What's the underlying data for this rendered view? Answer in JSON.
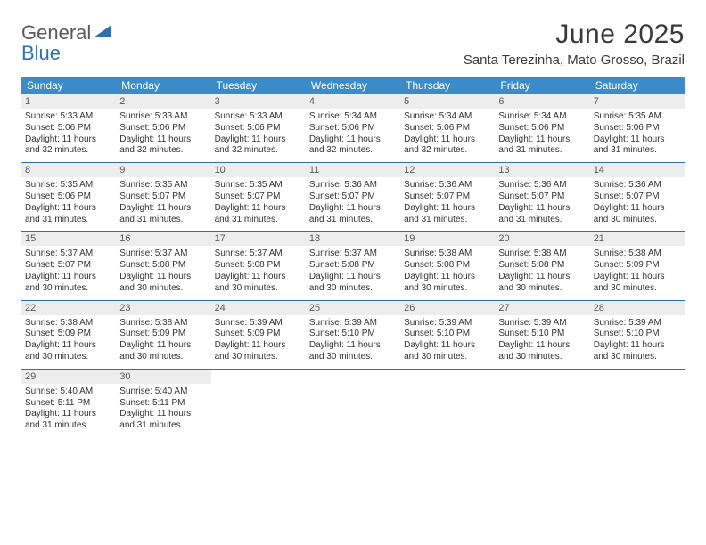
{
  "branding": {
    "logo_word1": "General",
    "logo_word2": "Blue",
    "logo_color_gray": "#6a6a6a",
    "logo_color_blue": "#2f6fb1"
  },
  "header": {
    "title": "June 2025",
    "location": "Santa Terezinha, Mato Grosso, Brazil"
  },
  "style": {
    "header_row_bg": "#3b8bc9",
    "header_row_fg": "#ffffff",
    "daynum_bg": "#ededed",
    "daynum_fg": "#5a5a5a",
    "week_divider": "#2f6fb1",
    "body_text": "#333333",
    "dow_fontsize": 12,
    "daynum_fontsize": 11,
    "info_fontsize": 10,
    "title_fontsize": 30,
    "location_fontsize": 15
  },
  "days_of_week": [
    "Sunday",
    "Monday",
    "Tuesday",
    "Wednesday",
    "Thursday",
    "Friday",
    "Saturday"
  ],
  "days": [
    {
      "n": "1",
      "sunrise": "5:33 AM",
      "sunset": "5:06 PM",
      "daylight": "11 hours and 32 minutes."
    },
    {
      "n": "2",
      "sunrise": "5:33 AM",
      "sunset": "5:06 PM",
      "daylight": "11 hours and 32 minutes."
    },
    {
      "n": "3",
      "sunrise": "5:33 AM",
      "sunset": "5:06 PM",
      "daylight": "11 hours and 32 minutes."
    },
    {
      "n": "4",
      "sunrise": "5:34 AM",
      "sunset": "5:06 PM",
      "daylight": "11 hours and 32 minutes."
    },
    {
      "n": "5",
      "sunrise": "5:34 AM",
      "sunset": "5:06 PM",
      "daylight": "11 hours and 32 minutes."
    },
    {
      "n": "6",
      "sunrise": "5:34 AM",
      "sunset": "5:06 PM",
      "daylight": "11 hours and 31 minutes."
    },
    {
      "n": "7",
      "sunrise": "5:35 AM",
      "sunset": "5:06 PM",
      "daylight": "11 hours and 31 minutes."
    },
    {
      "n": "8",
      "sunrise": "5:35 AM",
      "sunset": "5:06 PM",
      "daylight": "11 hours and 31 minutes."
    },
    {
      "n": "9",
      "sunrise": "5:35 AM",
      "sunset": "5:07 PM",
      "daylight": "11 hours and 31 minutes."
    },
    {
      "n": "10",
      "sunrise": "5:35 AM",
      "sunset": "5:07 PM",
      "daylight": "11 hours and 31 minutes."
    },
    {
      "n": "11",
      "sunrise": "5:36 AM",
      "sunset": "5:07 PM",
      "daylight": "11 hours and 31 minutes."
    },
    {
      "n": "12",
      "sunrise": "5:36 AM",
      "sunset": "5:07 PM",
      "daylight": "11 hours and 31 minutes."
    },
    {
      "n": "13",
      "sunrise": "5:36 AM",
      "sunset": "5:07 PM",
      "daylight": "11 hours and 31 minutes."
    },
    {
      "n": "14",
      "sunrise": "5:36 AM",
      "sunset": "5:07 PM",
      "daylight": "11 hours and 30 minutes."
    },
    {
      "n": "15",
      "sunrise": "5:37 AM",
      "sunset": "5:07 PM",
      "daylight": "11 hours and 30 minutes."
    },
    {
      "n": "16",
      "sunrise": "5:37 AM",
      "sunset": "5:08 PM",
      "daylight": "11 hours and 30 minutes."
    },
    {
      "n": "17",
      "sunrise": "5:37 AM",
      "sunset": "5:08 PM",
      "daylight": "11 hours and 30 minutes."
    },
    {
      "n": "18",
      "sunrise": "5:37 AM",
      "sunset": "5:08 PM",
      "daylight": "11 hours and 30 minutes."
    },
    {
      "n": "19",
      "sunrise": "5:38 AM",
      "sunset": "5:08 PM",
      "daylight": "11 hours and 30 minutes."
    },
    {
      "n": "20",
      "sunrise": "5:38 AM",
      "sunset": "5:08 PM",
      "daylight": "11 hours and 30 minutes."
    },
    {
      "n": "21",
      "sunrise": "5:38 AM",
      "sunset": "5:09 PM",
      "daylight": "11 hours and 30 minutes."
    },
    {
      "n": "22",
      "sunrise": "5:38 AM",
      "sunset": "5:09 PM",
      "daylight": "11 hours and 30 minutes."
    },
    {
      "n": "23",
      "sunrise": "5:38 AM",
      "sunset": "5:09 PM",
      "daylight": "11 hours and 30 minutes."
    },
    {
      "n": "24",
      "sunrise": "5:39 AM",
      "sunset": "5:09 PM",
      "daylight": "11 hours and 30 minutes."
    },
    {
      "n": "25",
      "sunrise": "5:39 AM",
      "sunset": "5:10 PM",
      "daylight": "11 hours and 30 minutes."
    },
    {
      "n": "26",
      "sunrise": "5:39 AM",
      "sunset": "5:10 PM",
      "daylight": "11 hours and 30 minutes."
    },
    {
      "n": "27",
      "sunrise": "5:39 AM",
      "sunset": "5:10 PM",
      "daylight": "11 hours and 30 minutes."
    },
    {
      "n": "28",
      "sunrise": "5:39 AM",
      "sunset": "5:10 PM",
      "daylight": "11 hours and 30 minutes."
    },
    {
      "n": "29",
      "sunrise": "5:40 AM",
      "sunset": "5:11 PM",
      "daylight": "11 hours and 31 minutes."
    },
    {
      "n": "30",
      "sunrise": "5:40 AM",
      "sunset": "5:11 PM",
      "daylight": "11 hours and 31 minutes."
    }
  ],
  "labels": {
    "sunrise_prefix": "Sunrise: ",
    "sunset_prefix": "Sunset: ",
    "daylight_prefix": "Daylight: "
  },
  "grid": {
    "columns": 7,
    "rows": 5,
    "first_weekday_index": 0,
    "trailing_empty_cells": 5
  }
}
